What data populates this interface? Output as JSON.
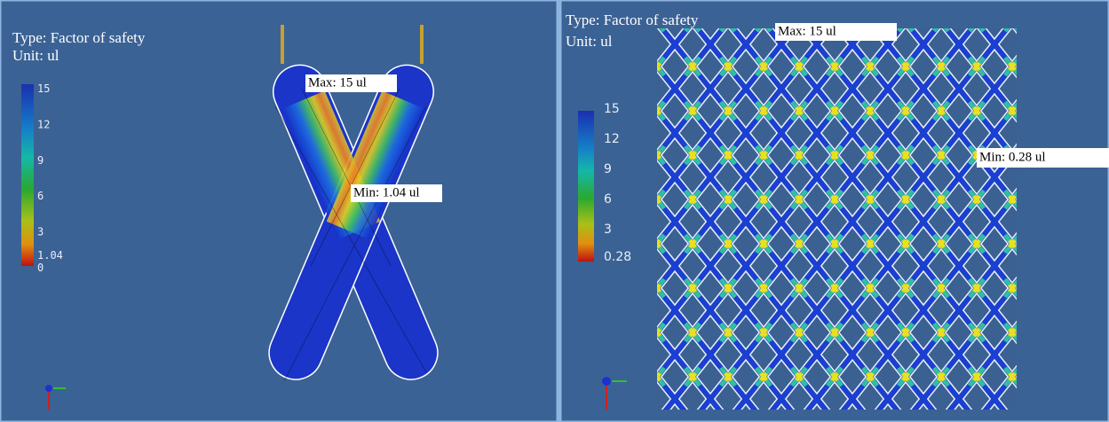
{
  "panels": [
    {
      "type_label": "Type: Factor of safety",
      "unit_label": "Unit: ul",
      "legend": [
        15,
        12,
        9,
        6,
        3,
        1.04,
        0
      ],
      "max_label": "Max: 15 ul",
      "min_label": "Min: 1.04 ul"
    },
    {
      "type_label": "Type: Factor of safety",
      "unit_label": "Unit: ul",
      "legend": [
        15,
        12,
        9,
        6,
        3,
        0.28
      ],
      "max_label": "Max: 15 ul",
      "min_label": "Min: 0.28 ul"
    }
  ]
}
